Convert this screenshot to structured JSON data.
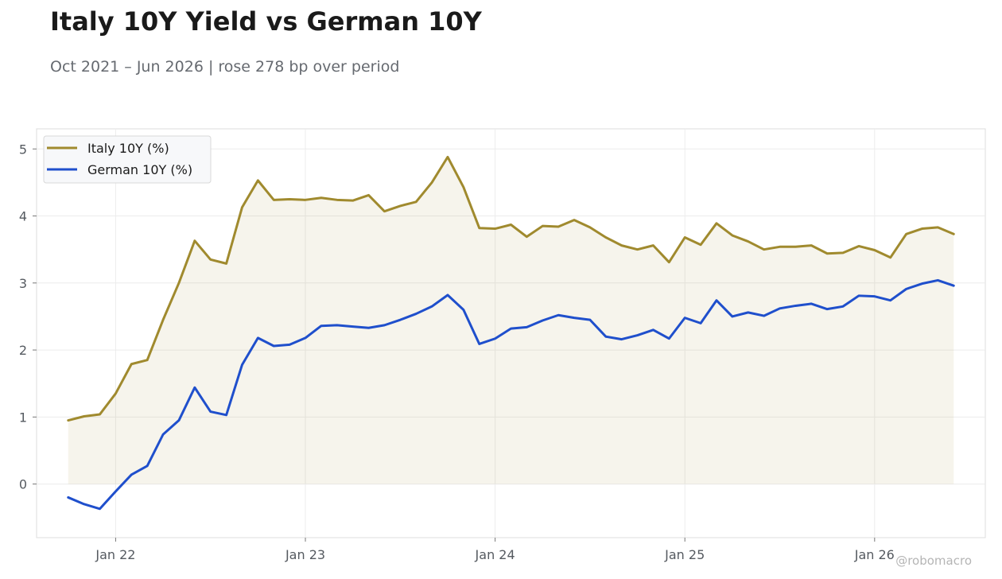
{
  "title": "Italy 10Y Yield vs German 10Y",
  "subtitle": "Oct 2021 – Jun 2026 | rose 278 bp over period",
  "credit": "@robomacro",
  "chart_data": {
    "type": "line",
    "x_start": "2021-10",
    "x_end": "2026-06",
    "x_frequency": "monthly",
    "ylim": [
      -0.8,
      5.3
    ],
    "xlim": [
      "2021-08",
      "2026-08"
    ],
    "grid": true,
    "legend_position": "top-left",
    "fill_under": "Italy 10Y (%)",
    "x_ticks": [
      {
        "label": "Jan 22",
        "date": "2022-01"
      },
      {
        "label": "Jan 23",
        "date": "2023-01"
      },
      {
        "label": "Jan 24",
        "date": "2024-01"
      },
      {
        "label": "Jan 25",
        "date": "2025-01"
      },
      {
        "label": "Jan 26",
        "date": "2026-01"
      }
    ],
    "y_ticks": [
      0,
      1,
      2,
      3,
      4,
      5
    ],
    "series": [
      {
        "name": "Italy 10Y (%)",
        "color": "#a08a2e",
        "values": [
          0.95,
          1.01,
          1.04,
          1.35,
          1.79,
          1.85,
          2.45,
          3.0,
          3.63,
          3.35,
          3.29,
          4.13,
          4.53,
          4.24,
          4.25,
          4.24,
          4.27,
          4.24,
          4.23,
          4.31,
          4.07,
          4.15,
          4.21,
          4.5,
          4.88,
          4.43,
          3.82,
          3.81,
          3.87,
          3.69,
          3.85,
          3.84,
          3.94,
          3.83,
          3.68,
          3.56,
          3.5,
          3.56,
          3.31,
          3.68,
          3.57,
          3.89,
          3.71,
          3.62,
          3.5,
          3.54,
          3.54,
          3.56,
          3.44,
          3.45,
          3.55,
          3.49,
          3.38,
          3.73,
          3.81,
          3.83,
          3.73
        ]
      },
      {
        "name": "German 10Y (%)",
        "color": "#1f4fcc",
        "values": [
          -0.2,
          -0.3,
          -0.37,
          -0.11,
          0.14,
          0.27,
          0.74,
          0.95,
          1.44,
          1.08,
          1.03,
          1.78,
          2.18,
          2.06,
          2.08,
          2.18,
          2.36,
          2.37,
          2.35,
          2.33,
          2.37,
          2.45,
          2.54,
          2.65,
          2.82,
          2.6,
          2.09,
          2.17,
          2.32,
          2.34,
          2.44,
          2.52,
          2.48,
          2.45,
          2.2,
          2.16,
          2.22,
          2.3,
          2.17,
          2.48,
          2.4,
          2.74,
          2.5,
          2.56,
          2.51,
          2.62,
          2.66,
          2.69,
          2.61,
          2.65,
          2.81,
          2.8,
          2.74,
          2.91,
          2.99,
          3.04,
          2.96
        ]
      }
    ]
  }
}
